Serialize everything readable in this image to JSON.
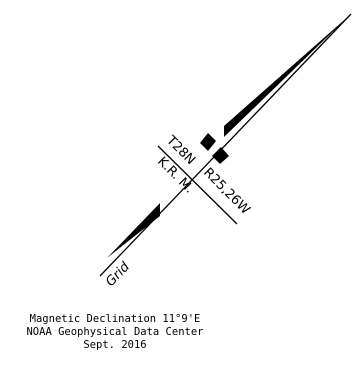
{
  "diagram": {
    "township_label": "T28N",
    "range_label": "R25,26W",
    "meridian_label": "K.R. M.",
    "grid_label": "Grid",
    "line_color": "#000000",
    "background_color": "#ffffff"
  },
  "caption": {
    "line1": "Magnetic Declination 11°9'E",
    "line2": "NOAA Geophysical Data Center",
    "line3": "Sept. 2016"
  }
}
